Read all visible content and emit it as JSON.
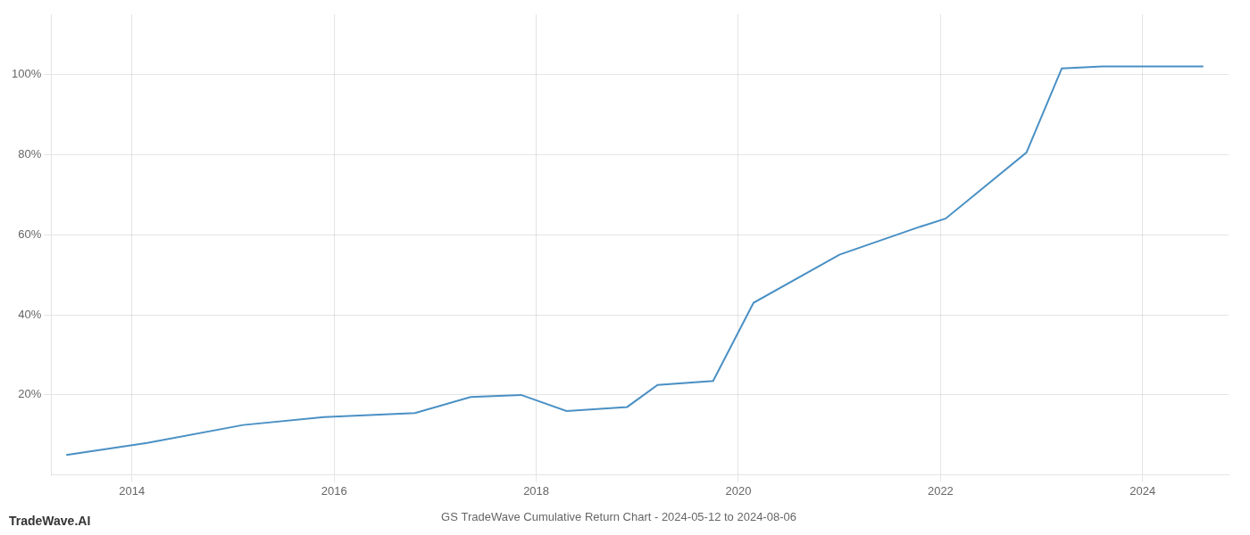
{
  "chart_data": {
    "type": "line",
    "title": "GS TradeWave Cumulative Return Chart - 2024-05-12 to 2024-08-06",
    "annotations": [
      "TradeWave.AI"
    ],
    "x": [
      2013.35,
      2014.15,
      2015.1,
      2015.9,
      2016.8,
      2017.35,
      2017.85,
      2018.3,
      2018.9,
      2019.2,
      2019.75,
      2020.15,
      2021.0,
      2021.8,
      2022.05,
      2022.85,
      2023.2,
      2023.6,
      2024.0,
      2024.6
    ],
    "values": [
      5.0,
      8.0,
      12.5,
      14.5,
      15.5,
      19.5,
      20.0,
      16.0,
      17.0,
      22.5,
      23.5,
      43.0,
      55.0,
      62.0,
      64.0,
      80.5,
      101.5,
      102.0,
      102.0,
      102.0
    ],
    "color": "#4a90c4",
    "xlim": [
      2013.2,
      2024.85
    ],
    "ylim": [
      0,
      115
    ],
    "xticks": [
      2014,
      2016,
      2018,
      2020,
      2022,
      2024
    ],
    "yticks": [
      {
        "value": 20,
        "label": "20%"
      },
      {
        "value": 40,
        "label": "40%"
      },
      {
        "value": 60,
        "label": "60%"
      },
      {
        "value": 80,
        "label": "80%"
      },
      {
        "value": 100,
        "label": "100%"
      }
    ],
    "grid": true
  }
}
